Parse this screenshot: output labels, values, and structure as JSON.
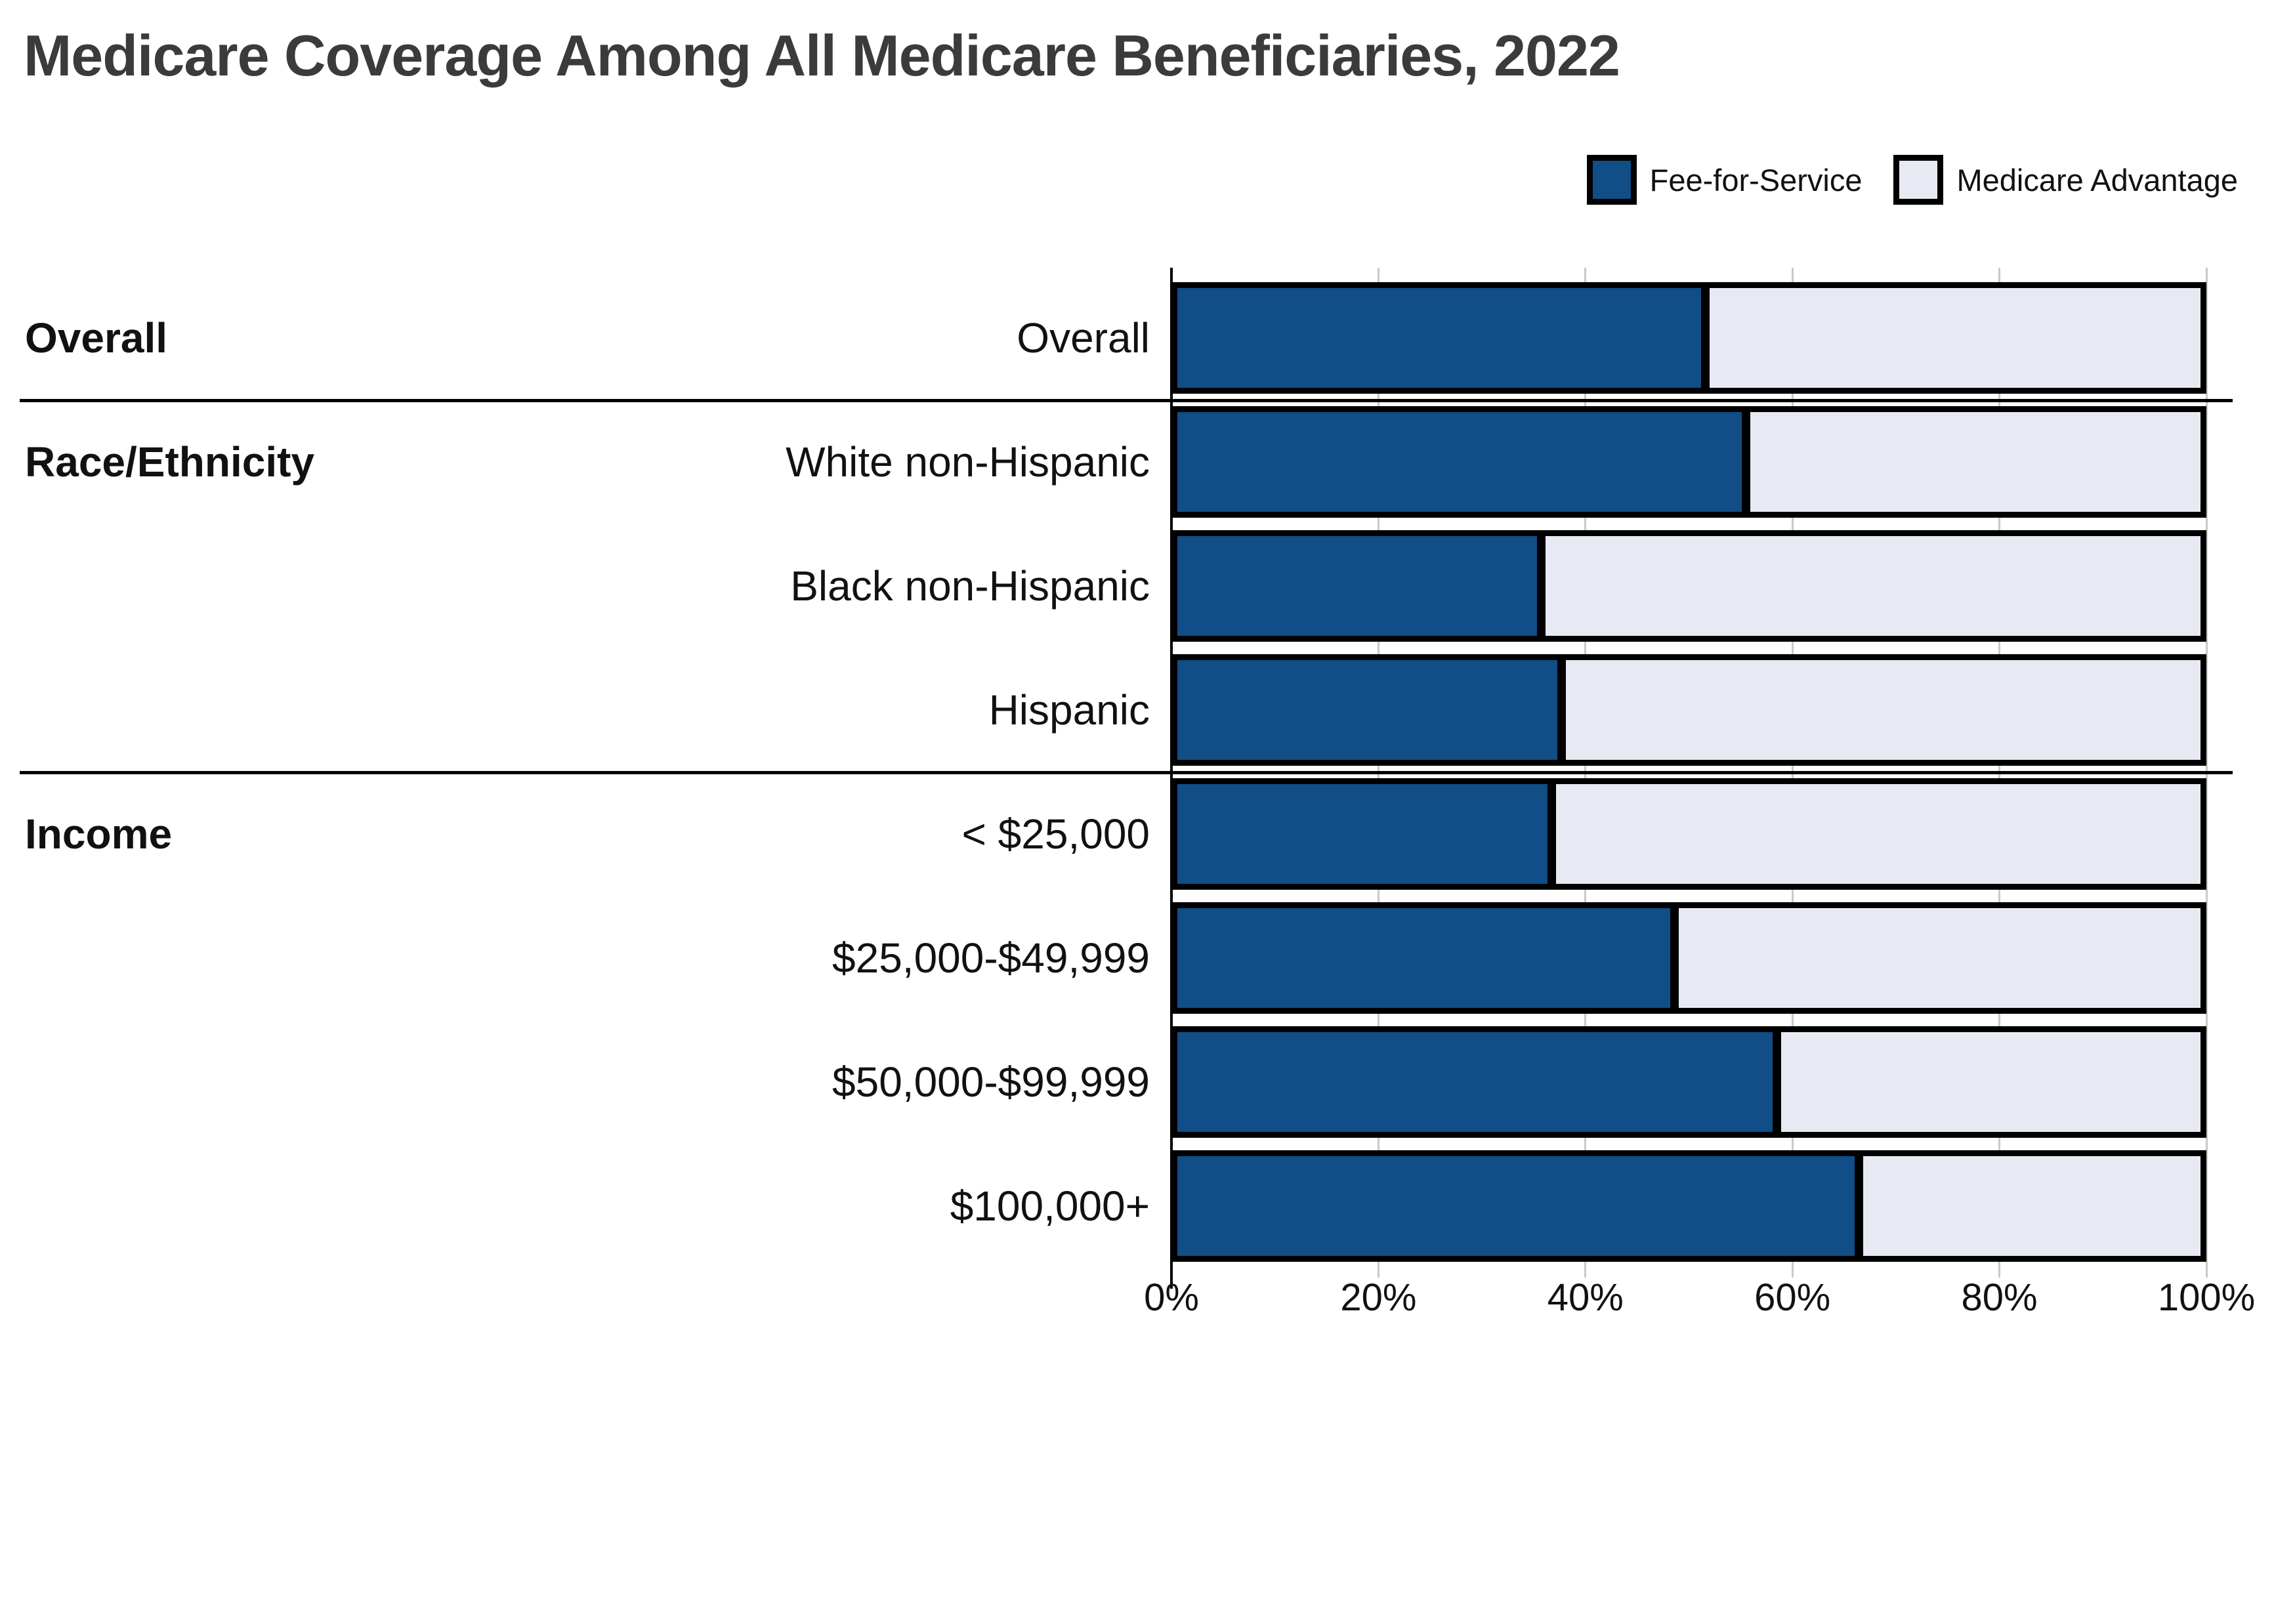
{
  "title": "Medicare Coverage Among All Medicare Beneficiaries, 2022",
  "legend": [
    {
      "label": "Fee-for-Service",
      "color": "#114D87"
    },
    {
      "label": "Medicare Advantage",
      "color": "#E7EAF2"
    }
  ],
  "axis": {
    "tick_values": [
      0,
      20,
      40,
      60,
      80,
      100
    ],
    "tick_labels": [
      "0%",
      "20%",
      "40%",
      "60%",
      "80%",
      "100%"
    ]
  },
  "colors": {
    "ffs": "#114D87",
    "ma": "#E7EAF2",
    "grid": "#c9c9c9",
    "axis": "#000000",
    "divider": "#000000",
    "title_text": "#3B3B3B",
    "label_text": "#111111"
  },
  "chart_data": {
    "type": "bar",
    "orientation": "horizontal-stacked",
    "title": "Medicare Coverage Among All Medicare Beneficiaries, 2022",
    "xlim": [
      0,
      100
    ],
    "x_tick_labels": [
      "0%",
      "20%",
      "40%",
      "60%",
      "80%",
      "100%"
    ],
    "grid": true,
    "legend_position": "top-right",
    "series": [
      {
        "name": "Fee-for-Service",
        "color": "#114D87"
      },
      {
        "name": "Medicare Advantage",
        "color": "#E7EAF2"
      }
    ],
    "groups": [
      {
        "section": "Overall",
        "rows": [
          {
            "label": "Overall",
            "fee_for_service": 52,
            "medicare_advantage": 48
          }
        ]
      },
      {
        "section": "Race/Ethnicity",
        "rows": [
          {
            "label": "White non-Hispanic",
            "fee_for_service": 56,
            "medicare_advantage": 44
          },
          {
            "label": "Black non-Hispanic",
            "fee_for_service": 36,
            "medicare_advantage": 64
          },
          {
            "label": "Hispanic",
            "fee_for_service": 38,
            "medicare_advantage": 62
          }
        ]
      },
      {
        "section": "Income",
        "rows": [
          {
            "label": "< $25,000",
            "fee_for_service": 37,
            "medicare_advantage": 63
          },
          {
            "label": "$25,000-$49,999",
            "fee_for_service": 49,
            "medicare_advantage": 51
          },
          {
            "label": "$50,000-$99,999",
            "fee_for_service": 59,
            "medicare_advantage": 41
          },
          {
            "label": "$100,000+",
            "fee_for_service": 67,
            "medicare_advantage": 33
          }
        ]
      }
    ]
  }
}
